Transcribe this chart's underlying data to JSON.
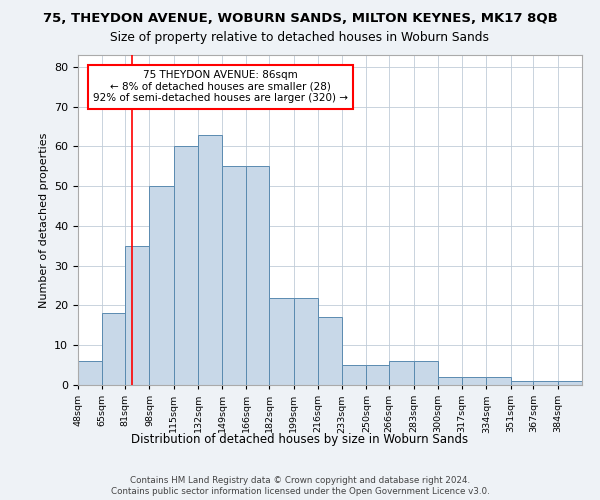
{
  "title1": "75, THEYDON AVENUE, WOBURN SANDS, MILTON KEYNES, MK17 8QB",
  "title2": "Size of property relative to detached houses in Woburn Sands",
  "xlabel": "Distribution of detached houses by size in Woburn Sands",
  "ylabel": "Number of detached properties",
  "bin_labels": [
    "48sqm",
    "65sqm",
    "81sqm",
    "98sqm",
    "115sqm",
    "132sqm",
    "149sqm",
    "166sqm",
    "182sqm",
    "199sqm",
    "216sqm",
    "233sqm",
    "250sqm",
    "266sqm",
    "283sqm",
    "300sqm",
    "317sqm",
    "334sqm",
    "351sqm",
    "367sqm",
    "384sqm"
  ],
  "bar_heights": [
    6,
    18,
    35,
    50,
    60,
    63,
    55,
    55,
    22,
    22,
    17,
    5,
    5,
    6,
    6,
    2,
    2,
    2,
    1,
    1,
    1
  ],
  "bin_edges": [
    48,
    65,
    81,
    98,
    115,
    132,
    149,
    166,
    182,
    199,
    216,
    233,
    250,
    266,
    283,
    300,
    317,
    334,
    351,
    367,
    384,
    401
  ],
  "bar_color": "#c8d8e8",
  "bar_edge_color": "#5a8ab0",
  "property_size": 86,
  "annotation_text": "75 THEYDON AVENUE: 86sqm\n← 8% of detached houses are smaller (28)\n92% of semi-detached houses are larger (320) →",
  "annotation_box_color": "white",
  "annotation_box_edge_color": "red",
  "vline_color": "red",
  "ylim": [
    0,
    83
  ],
  "yticks": [
    0,
    10,
    20,
    30,
    40,
    50,
    60,
    70,
    80
  ],
  "footer1": "Contains HM Land Registry data © Crown copyright and database right 2024.",
  "footer2": "Contains public sector information licensed under the Open Government Licence v3.0.",
  "background_color": "#eef2f6",
  "plot_bg_color": "white",
  "grid_color": "#c0ccd8"
}
